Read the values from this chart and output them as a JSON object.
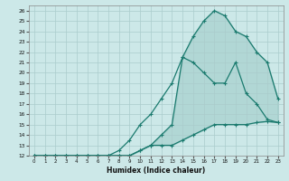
{
  "xlabel": "Humidex (Indice chaleur)",
  "bg_color": "#cce8e8",
  "grid_color": "#aacccc",
  "line_color": "#1a7a6e",
  "fill_color": "#1a7a6e",
  "xlim": [
    -0.5,
    23.5
  ],
  "ylim": [
    12,
    26.5
  ],
  "xticks": [
    0,
    1,
    2,
    3,
    4,
    5,
    6,
    7,
    8,
    9,
    10,
    11,
    12,
    13,
    14,
    15,
    16,
    17,
    18,
    19,
    20,
    21,
    22,
    23
  ],
  "yticks": [
    12,
    13,
    14,
    15,
    16,
    17,
    18,
    19,
    20,
    21,
    22,
    23,
    24,
    25,
    26
  ],
  "curve_bottom_x": [
    0,
    1,
    2,
    3,
    4,
    5,
    6,
    7,
    8,
    9,
    10,
    11,
    12,
    13,
    14,
    15,
    16,
    17,
    18,
    19,
    20,
    21,
    22,
    23
  ],
  "curve_bottom_y": [
    12,
    12,
    12,
    12,
    12,
    12,
    12,
    12,
    12,
    12,
    12.5,
    13,
    13,
    13,
    13.5,
    14,
    14.5,
    15,
    15,
    15,
    15,
    15.2,
    15.3,
    15.2
  ],
  "curve_mid_x": [
    0,
    1,
    2,
    3,
    4,
    5,
    6,
    7,
    8,
    9,
    10,
    11,
    12,
    13,
    14,
    15,
    16,
    17,
    18,
    19,
    20,
    21,
    22,
    23
  ],
  "curve_mid_y": [
    12,
    12,
    12,
    12,
    12,
    12,
    12,
    12,
    12.5,
    13.5,
    15,
    16,
    17.5,
    19,
    21.5,
    21,
    20,
    19,
    19,
    21,
    18,
    17,
    15.5,
    15.2
  ],
  "curve_top_x": [
    0,
    1,
    2,
    3,
    4,
    5,
    6,
    7,
    8,
    9,
    10,
    11,
    12,
    13,
    14,
    15,
    16,
    17,
    18,
    19,
    20,
    21,
    22,
    23
  ],
  "curve_top_y": [
    12,
    12,
    12,
    12,
    12,
    12,
    12,
    12,
    12,
    12,
    12.5,
    13,
    14,
    15,
    21.5,
    23.5,
    25,
    26,
    25.5,
    24,
    23.5,
    22,
    21,
    17.5
  ]
}
